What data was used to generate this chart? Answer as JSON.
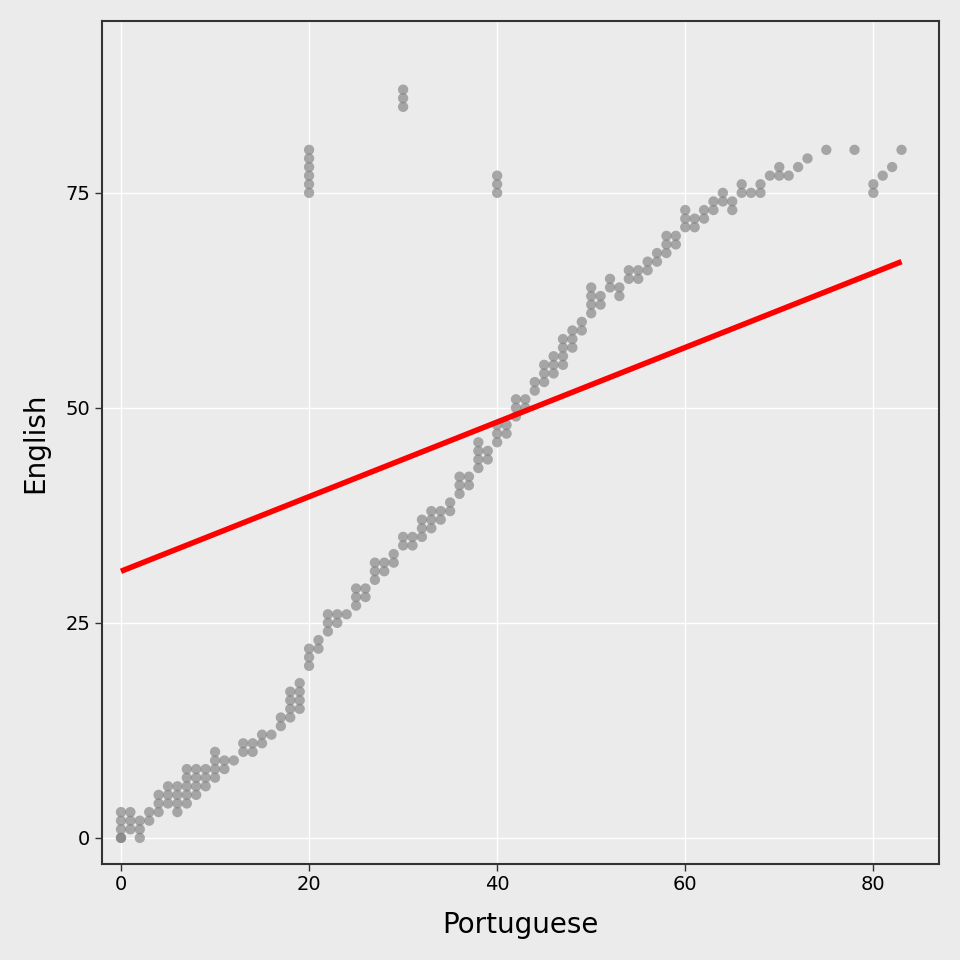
{
  "xlabel": "Portuguese",
  "ylabel": "English",
  "xlim": [
    -2,
    87
  ],
  "ylim": [
    -3,
    95
  ],
  "xticks": [
    0,
    20,
    40,
    60,
    80
  ],
  "yticks": [
    0,
    25,
    50,
    75
  ],
  "point_color": "#808080",
  "point_alpha": 0.65,
  "point_size": 55,
  "line_color": "#FF0000",
  "line_width": 4.0,
  "line_x_start": 0,
  "line_x_end": 83,
  "line_y_start": 31,
  "line_y_end": 67,
  "background_color": "#EBEBEB",
  "grid_color": "#FFFFFF",
  "spine_color": "#333333",
  "portuguese": [
    0,
    0,
    0,
    0,
    0,
    1,
    1,
    1,
    2,
    2,
    2,
    3,
    3,
    4,
    4,
    4,
    5,
    5,
    5,
    6,
    6,
    6,
    6,
    7,
    7,
    7,
    7,
    7,
    8,
    8,
    8,
    8,
    9,
    9,
    9,
    10,
    10,
    10,
    10,
    11,
    11,
    12,
    13,
    13,
    14,
    14,
    15,
    15,
    16,
    17,
    17,
    18,
    18,
    18,
    18,
    19,
    19,
    19,
    19,
    20,
    20,
    20,
    20,
    20,
    20,
    20,
    20,
    20,
    21,
    21,
    22,
    22,
    22,
    23,
    23,
    24,
    25,
    25,
    25,
    26,
    26,
    27,
    27,
    27,
    28,
    28,
    29,
    29,
    30,
    30,
    30,
    30,
    30,
    31,
    31,
    32,
    32,
    32,
    33,
    33,
    33,
    34,
    34,
    35,
    35,
    36,
    36,
    36,
    37,
    37,
    38,
    38,
    38,
    38,
    39,
    39,
    40,
    40,
    40,
    40,
    40,
    40,
    41,
    41,
    42,
    42,
    42,
    43,
    43,
    44,
    44,
    45,
    45,
    45,
    46,
    46,
    46,
    47,
    47,
    47,
    47,
    48,
    48,
    48,
    49,
    49,
    50,
    50,
    50,
    50,
    51,
    51,
    52,
    52,
    53,
    53,
    54,
    54,
    55,
    55,
    56,
    56,
    57,
    57,
    58,
    58,
    58,
    59,
    59,
    60,
    60,
    60,
    61,
    61,
    62,
    62,
    63,
    63,
    64,
    64,
    65,
    65,
    66,
    66,
    67,
    68,
    68,
    69,
    70,
    70,
    71,
    72,
    73,
    75,
    78,
    80,
    80,
    81,
    82,
    83
  ],
  "english": [
    0,
    0,
    1,
    2,
    3,
    1,
    2,
    3,
    0,
    1,
    2,
    2,
    3,
    3,
    4,
    5,
    4,
    5,
    6,
    3,
    4,
    5,
    6,
    4,
    5,
    6,
    7,
    8,
    5,
    6,
    7,
    8,
    6,
    7,
    8,
    7,
    8,
    9,
    10,
    8,
    9,
    9,
    10,
    11,
    10,
    11,
    11,
    12,
    12,
    13,
    14,
    14,
    15,
    16,
    17,
    15,
    16,
    17,
    18,
    20,
    21,
    22,
    75,
    76,
    77,
    78,
    79,
    80,
    22,
    23,
    24,
    25,
    26,
    25,
    26,
    26,
    27,
    28,
    29,
    28,
    29,
    30,
    31,
    32,
    31,
    32,
    32,
    33,
    34,
    35,
    85,
    86,
    87,
    34,
    35,
    35,
    36,
    37,
    36,
    37,
    38,
    37,
    38,
    38,
    39,
    40,
    41,
    42,
    41,
    42,
    43,
    44,
    45,
    46,
    44,
    45,
    46,
    47,
    48,
    75,
    76,
    77,
    47,
    48,
    49,
    50,
    51,
    50,
    51,
    52,
    53,
    53,
    54,
    55,
    54,
    55,
    56,
    55,
    56,
    57,
    58,
    57,
    58,
    59,
    59,
    60,
    61,
    62,
    63,
    64,
    62,
    63,
    64,
    65,
    63,
    64,
    65,
    66,
    65,
    66,
    66,
    67,
    67,
    68,
    68,
    69,
    70,
    69,
    70,
    71,
    72,
    73,
    71,
    72,
    72,
    73,
    73,
    74,
    74,
    75,
    73,
    74,
    75,
    76,
    75,
    75,
    76,
    77,
    77,
    78,
    77,
    78,
    79,
    80,
    80,
    75,
    76,
    77,
    78,
    80
  ]
}
